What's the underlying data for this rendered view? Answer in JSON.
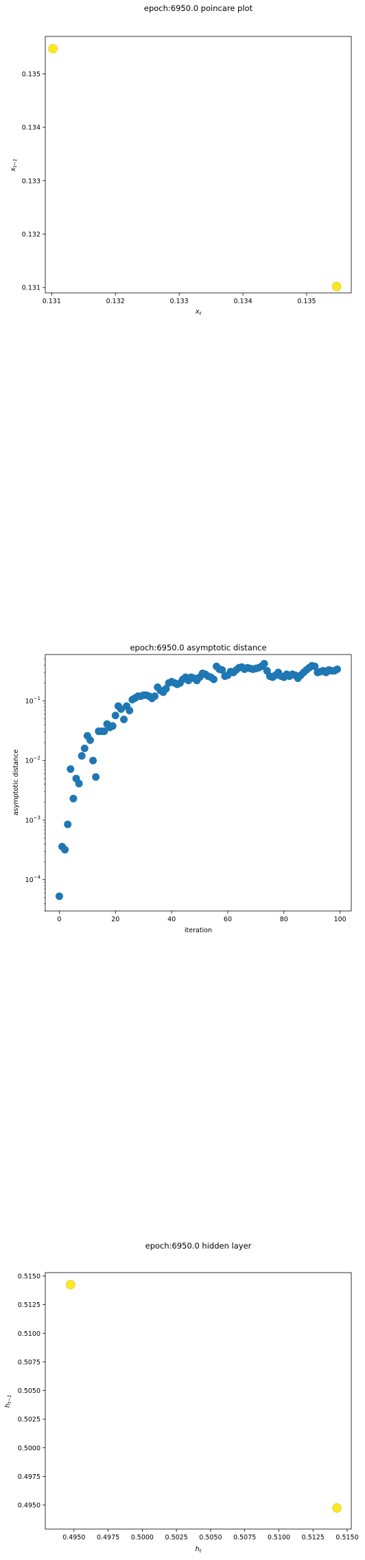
{
  "chart_data": [
    {
      "type": "scatter",
      "title": "epoch:6950.0 poincare plot",
      "xlabel": "x_t",
      "ylabel": "x_{t-1}",
      "xlim": [
        0.1309,
        0.1357
      ],
      "ylim": [
        0.1309,
        0.1357
      ],
      "xticks": [
        "0.131",
        "0.132",
        "0.133",
        "0.134",
        "0.135"
      ],
      "yticks": [
        "0.131",
        "0.132",
        "0.133",
        "0.134",
        "0.135"
      ],
      "grid": false,
      "marker_color": "#fde725",
      "points": [
        {
          "x": 0.13102,
          "y": 0.13547
        },
        {
          "x": 0.13547,
          "y": 0.13102
        }
      ]
    },
    {
      "type": "scatter",
      "title": "epoch:6950.0 asymptotic distance",
      "xlabel": "iteration",
      "ylabel": "asymptotic distance",
      "xlim": [
        -5,
        104
      ],
      "ylog": true,
      "ylim": [
        3e-05,
        0.6
      ],
      "xticks": [
        0,
        20,
        40,
        60,
        80,
        100
      ],
      "yticks": [
        "10^-4",
        "10^-3",
        "10^-2",
        "10^-1"
      ],
      "grid": false,
      "marker_color": "#1f77b4",
      "x": [
        0,
        1,
        2,
        3,
        4,
        5,
        6,
        7,
        8,
        9,
        10,
        11,
        12,
        13,
        14,
        15,
        16,
        17,
        18,
        19,
        20,
        21,
        22,
        23,
        24,
        25,
        26,
        27,
        28,
        29,
        30,
        31,
        32,
        33,
        34,
        35,
        36,
        37,
        38,
        39,
        40,
        41,
        42,
        43,
        44,
        45,
        46,
        47,
        48,
        49,
        50,
        51,
        52,
        53,
        54,
        55,
        56,
        57,
        58,
        59,
        60,
        61,
        62,
        63,
        64,
        65,
        66,
        67,
        68,
        69,
        70,
        71,
        72,
        73,
        74,
        75,
        76,
        77,
        78,
        79,
        80,
        81,
        82,
        83,
        84,
        85,
        86,
        87,
        88,
        89,
        90,
        91,
        92,
        93,
        94,
        95,
        96,
        97,
        98,
        99
      ],
      "values": [
        5.3e-05,
        0.00036,
        0.00032,
        0.00085,
        0.0072,
        0.0023,
        0.005,
        0.0041,
        0.012,
        0.016,
        0.026,
        0.022,
        0.01,
        0.0053,
        0.031,
        0.031,
        0.031,
        0.041,
        0.036,
        0.038,
        0.057,
        0.082,
        0.073,
        0.049,
        0.082,
        0.069,
        0.105,
        0.112,
        0.12,
        0.12,
        0.125,
        0.125,
        0.12,
        0.11,
        0.12,
        0.17,
        0.15,
        0.14,
        0.16,
        0.2,
        0.21,
        0.2,
        0.19,
        0.2,
        0.23,
        0.25,
        0.22,
        0.25,
        0.24,
        0.22,
        0.25,
        0.29,
        0.28,
        0.26,
        0.25,
        0.23,
        0.38,
        0.34,
        0.33,
        0.26,
        0.27,
        0.31,
        0.3,
        0.33,
        0.36,
        0.37,
        0.34,
        0.36,
        0.35,
        0.34,
        0.35,
        0.36,
        0.38,
        0.42,
        0.32,
        0.26,
        0.25,
        0.27,
        0.3,
        0.26,
        0.25,
        0.28,
        0.26,
        0.28,
        0.27,
        0.24,
        0.27,
        0.3,
        0.33,
        0.36,
        0.39,
        0.38,
        0.3,
        0.31,
        0.32,
        0.3,
        0.33,
        0.32,
        0.32,
        0.34
      ]
    },
    {
      "type": "scatter",
      "title": "epoch:6950.0 hidden layer",
      "xlabel": "h_t",
      "ylabel": "h_{t-1}",
      "xlim": [
        0.4929,
        0.5153
      ],
      "ylim": [
        0.4929,
        0.5153
      ],
      "xticks": [
        "0.4950",
        "0.4975",
        "0.5000",
        "0.5025",
        "0.5050",
        "0.5075",
        "0.5100",
        "0.5125",
        "0.5150"
      ],
      "yticks": [
        "0.4950",
        "0.4975",
        "0.5000",
        "0.5025",
        "0.5050",
        "0.5075",
        "0.5100",
        "0.5125",
        "0.5150"
      ],
      "grid": false,
      "marker_color": "#fde725",
      "points": [
        {
          "x": 0.49475,
          "y": 0.51425
        },
        {
          "x": 0.51425,
          "y": 0.49475
        }
      ]
    }
  ]
}
